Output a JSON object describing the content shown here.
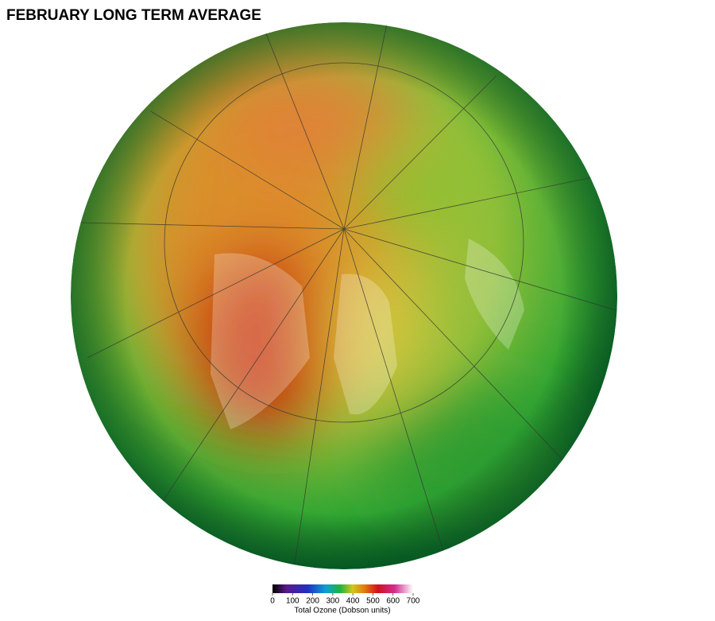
{
  "title": "FEBRUARY LONG TERM AVERAGE",
  "colorbar": {
    "range": [
      0,
      700
    ],
    "ticks": [
      0,
      100,
      200,
      300,
      400,
      500,
      600,
      700
    ],
    "label": "Total Ozone (Dobson units)"
  }
}
